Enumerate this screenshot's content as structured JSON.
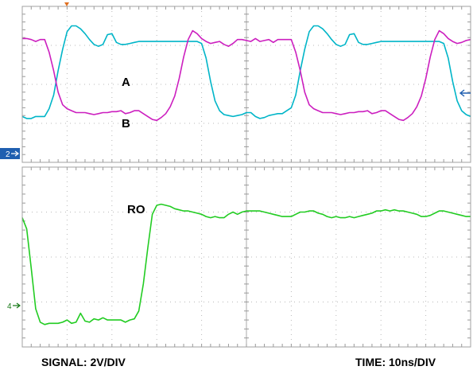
{
  "footer": {
    "signal_scale": "SIGNAL: 2V/DIV",
    "time_scale": "TIME: 10ns/DIV"
  },
  "markers": {
    "ch2": "2",
    "ch4": "4"
  },
  "colors": {
    "trace_a": "#00b5c8",
    "trace_b": "#cc1fbf",
    "trace_ro": "#22cc22",
    "ch2_marker": "#1f5fb0",
    "ch4_marker": "#1a7a1a",
    "grid": "#b9b9b9",
    "trigger": "#e07020"
  },
  "chart_data": [
    {
      "type": "line",
      "panel": "upper",
      "xlabel": "",
      "ylabel": "",
      "xlim": [
        0,
        100
      ],
      "ylim": [
        -4,
        4
      ],
      "grid": true,
      "series": [
        {
          "name": "A",
          "color": "#00b5c8",
          "x": [
            0,
            1,
            2,
            3,
            4,
            5,
            6,
            7,
            8,
            9,
            10,
            11,
            12,
            13,
            14,
            15,
            16,
            17,
            18,
            19,
            20,
            21,
            22,
            23,
            24,
            25,
            26,
            27,
            28,
            29,
            30,
            31,
            32,
            33,
            34,
            35,
            36,
            37,
            38,
            39,
            40,
            41,
            42,
            43,
            44,
            45,
            46,
            47,
            48,
            49,
            50,
            51,
            52,
            53,
            54,
            55,
            56,
            57,
            58,
            59,
            60,
            61,
            62,
            63,
            64,
            65,
            66,
            67,
            68,
            69,
            70,
            71,
            72,
            73,
            74,
            75,
            76,
            77,
            78,
            79,
            80,
            81,
            82,
            83,
            84,
            85,
            86,
            87,
            88,
            89,
            90,
            91,
            92,
            93,
            94,
            95,
            96,
            97,
            98,
            99,
            100
          ],
          "values": [
            -1.65,
            -1.75,
            -1.75,
            -1.65,
            -1.65,
            -1.65,
            -1.25,
            -0.55,
            0.7,
            1.8,
            2.7,
            3.0,
            3.0,
            2.85,
            2.6,
            2.3,
            2.05,
            1.95,
            2.05,
            2.55,
            2.6,
            2.15,
            2.05,
            2.05,
            2.1,
            2.15,
            2.2,
            2.2,
            2.2,
            2.2,
            2.2,
            2.2,
            2.2,
            2.2,
            2.2,
            2.2,
            2.2,
            2.2,
            2.2,
            2.2,
            2.1,
            1.35,
            0.15,
            -0.85,
            -1.35,
            -1.55,
            -1.6,
            -1.65,
            -1.6,
            -1.55,
            -1.45,
            -1.45,
            -1.65,
            -1.75,
            -1.7,
            -1.6,
            -1.55,
            -1.5,
            -1.5,
            -1.35,
            -1.2,
            -0.55,
            0.7,
            1.8,
            2.7,
            3.0,
            3.0,
            2.85,
            2.6,
            2.3,
            2.05,
            1.95,
            2.05,
            2.55,
            2.6,
            2.15,
            2.05,
            2.05,
            2.1,
            2.15,
            2.2,
            2.2,
            2.2,
            2.2,
            2.2,
            2.2,
            2.2,
            2.2,
            2.2,
            2.2,
            2.2,
            2.2,
            2.2,
            2.2,
            2.1,
            1.35,
            0.15,
            -0.85,
            -1.35,
            -1.55,
            -1.65
          ]
        },
        {
          "name": "B",
          "color": "#cc1fbf",
          "x": [
            0,
            1,
            2,
            3,
            4,
            5,
            6,
            7,
            8,
            9,
            10,
            11,
            12,
            13,
            14,
            15,
            16,
            17,
            18,
            19,
            20,
            21,
            22,
            23,
            24,
            25,
            26,
            27,
            28,
            29,
            30,
            31,
            32,
            33,
            34,
            35,
            36,
            37,
            38,
            39,
            40,
            41,
            42,
            43,
            44,
            45,
            46,
            47,
            48,
            49,
            50,
            51,
            52,
            53,
            54,
            55,
            56,
            57,
            58,
            59,
            60,
            61,
            62,
            63,
            64,
            65,
            66,
            67,
            68,
            69,
            70,
            71,
            72,
            73,
            74,
            75,
            76,
            77,
            78,
            79,
            80,
            81,
            82,
            83,
            84,
            85,
            86,
            87,
            88,
            89,
            90,
            91,
            92,
            93,
            94,
            95,
            96,
            97,
            98,
            99,
            100
          ],
          "values": [
            2.35,
            2.35,
            2.3,
            2.2,
            2.3,
            2.3,
            1.65,
            0.7,
            -0.4,
            -1.05,
            -1.25,
            -1.35,
            -1.45,
            -1.45,
            -1.45,
            -1.5,
            -1.55,
            -1.5,
            -1.45,
            -1.45,
            -1.4,
            -1.4,
            -1.35,
            -1.5,
            -1.45,
            -1.35,
            -1.35,
            -1.5,
            -1.65,
            -1.8,
            -1.85,
            -1.7,
            -1.5,
            -1.15,
            -0.6,
            0.3,
            1.4,
            2.3,
            2.75,
            2.6,
            2.35,
            2.2,
            2.1,
            2.15,
            2.2,
            2.05,
            1.95,
            2.1,
            2.3,
            2.3,
            2.25,
            2.2,
            2.35,
            2.2,
            2.25,
            2.3,
            2.15,
            2.3,
            2.3,
            2.3,
            2.3,
            1.65,
            0.7,
            -0.4,
            -1.05,
            -1.25,
            -1.35,
            -1.45,
            -1.45,
            -1.45,
            -1.5,
            -1.55,
            -1.5,
            -1.45,
            -1.45,
            -1.4,
            -1.4,
            -1.35,
            -1.5,
            -1.45,
            -1.35,
            -1.35,
            -1.5,
            -1.65,
            -1.8,
            -1.85,
            -1.7,
            -1.5,
            -1.15,
            -0.6,
            0.3,
            1.4,
            2.3,
            2.75,
            2.6,
            2.35,
            2.2,
            2.1,
            2.15,
            2.25,
            2.3
          ]
        }
      ]
    },
    {
      "type": "line",
      "panel": "lower",
      "xlabel": "",
      "ylabel": "",
      "xlim": [
        0,
        100
      ],
      "ylim": [
        -4,
        4
      ],
      "grid": true,
      "series": [
        {
          "name": "RO",
          "color": "#22cc22",
          "x": [
            0,
            1,
            2,
            3,
            4,
            5,
            6,
            7,
            8,
            9,
            10,
            11,
            12,
            13,
            14,
            15,
            16,
            17,
            18,
            19,
            20,
            21,
            22,
            23,
            24,
            25,
            26,
            27,
            28,
            29,
            30,
            31,
            32,
            33,
            34,
            35,
            36,
            37,
            38,
            39,
            40,
            41,
            42,
            43,
            44,
            45,
            46,
            47,
            48,
            49,
            50,
            51,
            52,
            53,
            54,
            55,
            56,
            57,
            58,
            59,
            60,
            61,
            62,
            63,
            64,
            65,
            66,
            67,
            68,
            69,
            70,
            71,
            72,
            73,
            74,
            75,
            76,
            77,
            78,
            79,
            80,
            81,
            82,
            83,
            84,
            85,
            86,
            87,
            88,
            89,
            90,
            91,
            92,
            93,
            94,
            95,
            96,
            97,
            98,
            99,
            100
          ],
          "values": [
            1.75,
            1.25,
            -0.5,
            -2.3,
            -2.9,
            -3.0,
            -2.95,
            -2.95,
            -2.95,
            -2.9,
            -2.8,
            -2.95,
            -2.9,
            -2.5,
            -2.85,
            -2.9,
            -2.75,
            -2.8,
            -2.7,
            -2.8,
            -2.8,
            -2.8,
            -2.8,
            -2.9,
            -2.8,
            -2.75,
            -2.4,
            -1.2,
            0.4,
            1.9,
            2.3,
            2.35,
            2.3,
            2.25,
            2.15,
            2.1,
            2.05,
            2.05,
            2.0,
            1.95,
            1.9,
            1.8,
            1.75,
            1.8,
            1.75,
            1.75,
            1.9,
            2.0,
            1.9,
            2.0,
            2.05,
            2.05,
            2.05,
            2.05,
            2.0,
            1.95,
            1.9,
            1.85,
            1.8,
            1.8,
            1.8,
            1.9,
            2.0,
            2.0,
            2.05,
            2.05,
            1.95,
            1.9,
            1.8,
            1.75,
            1.8,
            1.75,
            1.75,
            1.8,
            1.75,
            1.8,
            1.85,
            1.9,
            1.95,
            2.05,
            2.05,
            2.1,
            2.05,
            2.1,
            2.05,
            2.05,
            2.0,
            1.95,
            1.9,
            1.8,
            1.8,
            1.85,
            1.95,
            2.05,
            2.05,
            2.0,
            1.95,
            1.9,
            1.85,
            1.8,
            1.8
          ]
        }
      ]
    }
  ]
}
